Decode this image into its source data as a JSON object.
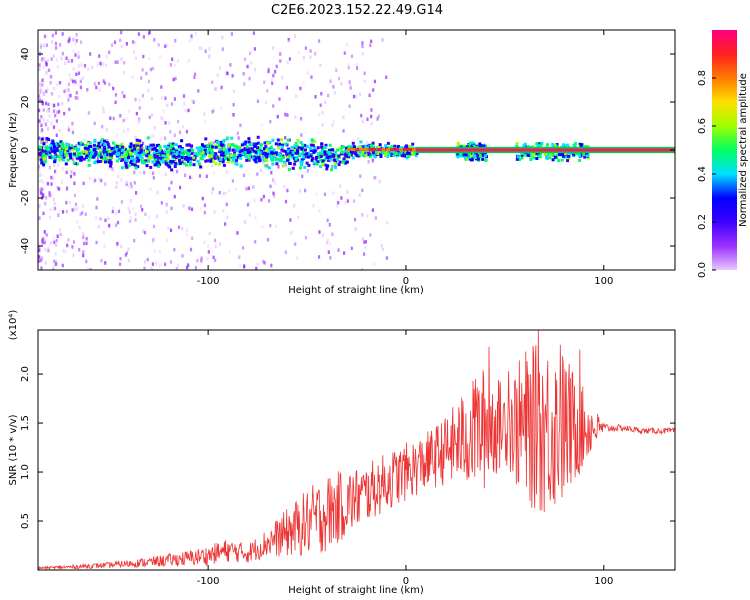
{
  "title": "C2E6.2023.152.22.49.G14",
  "chart_data": [
    {
      "type": "heatmap",
      "xlabel": "Height of straight line (km)",
      "ylabel": "Frequency (Hz)",
      "xlim": [
        -186,
        136
      ],
      "ylim": [
        -50,
        50
      ],
      "xticks": [
        -100,
        0,
        100
      ],
      "yticks": [
        -40,
        -20,
        0,
        20,
        40
      ],
      "grid": false,
      "colorbar": {
        "label": "Normalized spectral amplitude",
        "range": [
          0,
          1
        ],
        "ticks": [
          0.0,
          0.2,
          0.4,
          0.6,
          0.8
        ],
        "colors": [
          "#e6c8ff",
          "#9b30ff",
          "#3c00ff",
          "#0000ff",
          "#00e0ff",
          "#00ff60",
          "#a0ff00",
          "#ffe000",
          "#ff7a00",
          "#ff2020",
          "#ff0080"
        ]
      },
      "ridge": [
        {
          "height_km": -180,
          "freq_hz": 0.0
        },
        {
          "height_km": -120,
          "freq_hz": -1.5
        },
        {
          "height_km": -80,
          "freq_hz": 0.0
        },
        {
          "height_km": -40,
          "freq_hz": -2.0
        },
        {
          "height_km": -25,
          "freq_hz": 0.5
        },
        {
          "height_km": 0,
          "freq_hz": 0.0
        },
        {
          "height_km": 93,
          "freq_hz": 0.0
        },
        {
          "height_km": 136,
          "freq_hz": 0.0
        }
      ]
    },
    {
      "type": "line",
      "xlabel": "Height of straight line (km)",
      "ylabel": "SNR (10 * v/v)",
      "multiplier": "(x10⁴)",
      "xlim": [
        -186,
        136
      ],
      "ylim": [
        0,
        2.45
      ],
      "xticks": [
        -100,
        0,
        100
      ],
      "yticks": [
        0.5,
        1.0,
        1.5,
        2.0
      ],
      "grid": false,
      "series_color": "#ee3333",
      "x": [
        -186,
        -170,
        -150,
        -130,
        -110,
        -100,
        -90,
        -80,
        -70,
        -60,
        -50,
        -40,
        -30,
        -20,
        -10,
        0,
        10,
        20,
        30,
        40,
        50,
        60,
        70,
        80,
        90,
        100,
        110,
        120,
        136
      ],
      "y": [
        0.02,
        0.03,
        0.05,
        0.08,
        0.12,
        0.15,
        0.2,
        0.17,
        0.28,
        0.38,
        0.48,
        0.58,
        0.68,
        0.78,
        0.9,
        1.0,
        1.1,
        1.22,
        1.35,
        1.45,
        1.5,
        1.45,
        1.45,
        1.45,
        1.45,
        1.45,
        1.45,
        1.42,
        1.42
      ],
      "noise_amplitude": [
        0.01,
        0.02,
        0.03,
        0.05,
        0.08,
        0.1,
        0.12,
        0.1,
        0.15,
        0.25,
        0.35,
        0.4,
        0.35,
        0.3,
        0.3,
        0.3,
        0.3,
        0.35,
        0.5,
        0.65,
        0.4,
        0.8,
        0.9,
        0.8,
        0.4,
        0.05,
        0.03,
        0.03,
        0.03
      ],
      "peaks": [
        {
          "x": 35,
          "y": 1.95
        },
        {
          "x": 42,
          "y": 2.28
        },
        {
          "x": 52,
          "y": 2.03
        },
        {
          "x": 67,
          "y": 2.45
        },
        {
          "x": 78,
          "y": 2.3
        },
        {
          "x": 88,
          "y": 2.25
        }
      ]
    }
  ]
}
